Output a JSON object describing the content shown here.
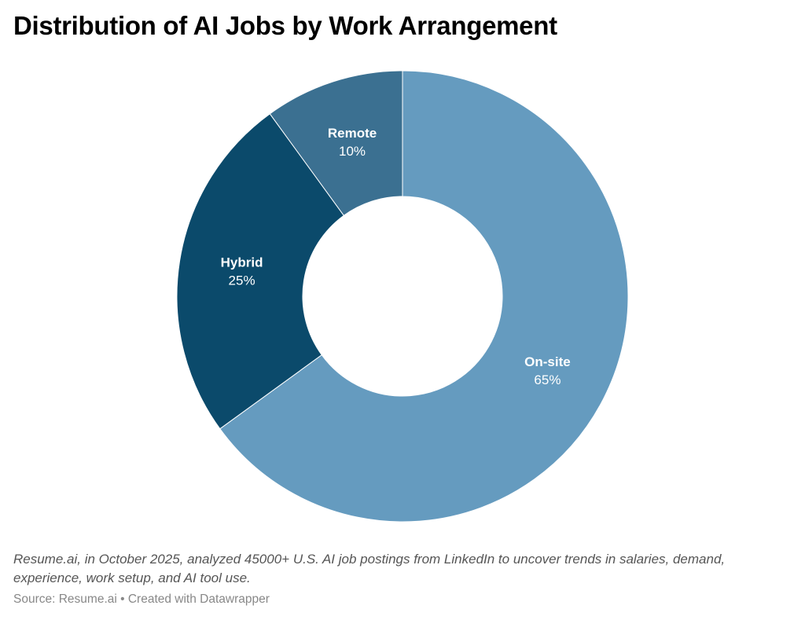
{
  "title": "Distribution of AI Jobs by Work Arrangement",
  "chart_data": {
    "type": "pie",
    "variant": "donut",
    "title": "Distribution of AI Jobs by Work Arrangement",
    "categories": [
      "On-site",
      "Hybrid",
      "Remote"
    ],
    "values": [
      65,
      25,
      10
    ],
    "value_labels": [
      "65%",
      "25%",
      "10%"
    ],
    "colors": [
      "#659bbf",
      "#0b4a6b",
      "#3b7091"
    ],
    "start": "top",
    "direction": "clockwise"
  },
  "notes": "Resume.ai, in October 2025, analyzed 45000+ U.S. AI job postings from LinkedIn to uncover trends in salaries, demand, experience, work setup, and AI tool use.",
  "source": "Source: Resume.ai • Created with Datawrapper"
}
